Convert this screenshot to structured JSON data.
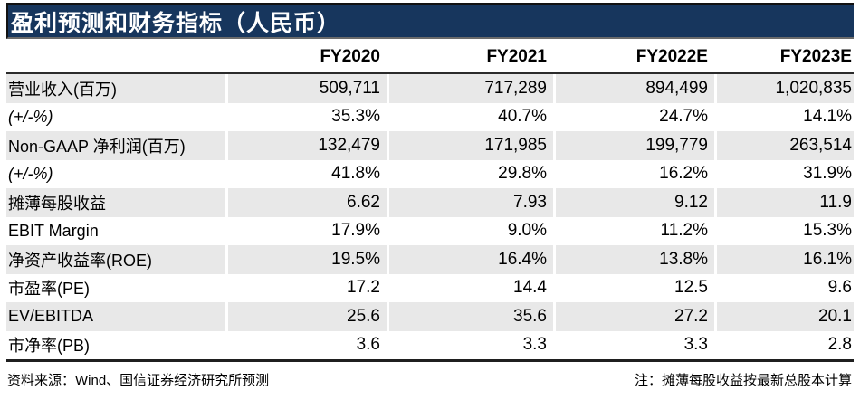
{
  "title": "盈利预测和财务指标（人民币）",
  "table": {
    "col_headers": [
      "FY2020",
      "FY2021",
      "FY2022E",
      "FY2023E"
    ],
    "rows": [
      {
        "label": "营业收入(百万)",
        "values": [
          "509,711",
          "717,289",
          "894,499",
          "1,020,835"
        ]
      },
      {
        "label": "(+/-%)",
        "values": [
          "35.3%",
          "40.7%",
          "24.7%",
          "14.1%"
        ]
      },
      {
        "label": "Non-GAAP 净利润(百万)",
        "values": [
          "132,479",
          "171,985",
          "199,779",
          "263,514"
        ]
      },
      {
        "label": "(+/-%)",
        "values": [
          "41.8%",
          "29.8%",
          "16.2%",
          "31.9%"
        ]
      },
      {
        "label": "摊薄每股收益",
        "values": [
          "6.62",
          "7.93",
          "9.12",
          "11.9"
        ]
      },
      {
        "label": "EBIT Margin",
        "values": [
          "17.9%",
          "9.0%",
          "11.2%",
          "15.3%"
        ]
      },
      {
        "label": "净资产收益率(ROE)",
        "values": [
          "19.5%",
          "16.4%",
          "13.8%",
          "16.1%"
        ]
      },
      {
        "label": "市盈率(PE)",
        "values": [
          "17.2",
          "14.4",
          "12.5",
          "9.6"
        ]
      },
      {
        "label": "EV/EBITDA",
        "values": [
          "25.6",
          "35.6",
          "27.2",
          "20.1"
        ]
      },
      {
        "label": "市净率(PB)",
        "values": [
          "3.6",
          "3.3",
          "3.3",
          "2.8"
        ]
      }
    ]
  },
  "footer": {
    "source": "资料来源：Wind、国信证券经济研究所预测",
    "note": "注：摊薄每股收益按最新总股本计算"
  },
  "colors": {
    "title_bg": "#17365d",
    "title_text": "#ffffff",
    "row_shade": "#e8e8e8",
    "rule_dark": "#262626"
  }
}
